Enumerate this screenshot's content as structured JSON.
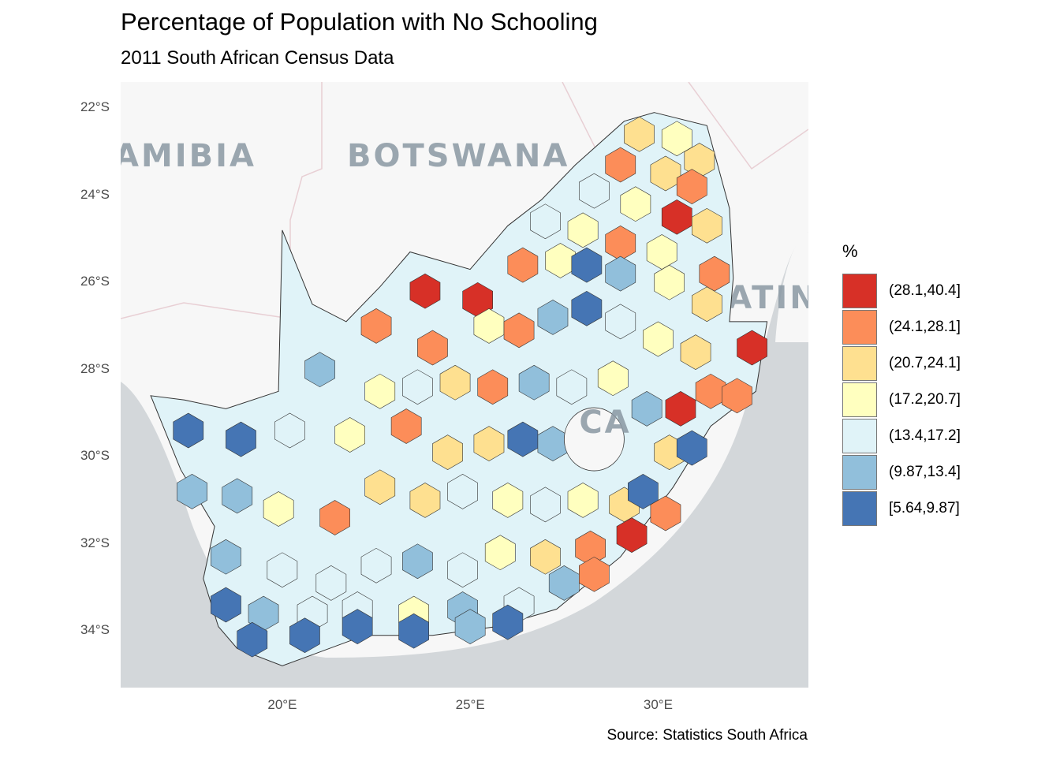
{
  "title": "Percentage of Population with No Schooling",
  "subtitle": "2011 South African Census Data",
  "caption": "Source: Statistics South Africa",
  "basemap_labels": [
    "AMIBIA",
    "BOTSWANA",
    "VATINI",
    "CA"
  ],
  "chart_data": {
    "type": "choropleth",
    "title": "Percentage of Population with No Schooling",
    "subtitle": "2011 South African Census Data",
    "caption": "Source: Statistics South Africa",
    "xlabel": "",
    "ylabel": "",
    "x_ticks": [
      "20°E",
      "25°E",
      "30°E"
    ],
    "x_tick_values": [
      20,
      25,
      30
    ],
    "y_ticks": [
      "22°S",
      "24°S",
      "26°S",
      "28°S",
      "30°S",
      "32°S",
      "34°S"
    ],
    "y_tick_values": [
      -22,
      -24,
      -26,
      -28,
      -30,
      -32,
      -34
    ],
    "xlim": [
      15.7,
      34.0
    ],
    "ylim": [
      -35.3,
      -21.4
    ],
    "legend": {
      "title": "%",
      "position": "right",
      "bins": [
        {
          "label": "(28.1,40.4]",
          "color": "#d73027"
        },
        {
          "label": "(24.1,28.1]",
          "color": "#fc8d59"
        },
        {
          "label": "(20.7,24.1]",
          "color": "#fee090"
        },
        {
          "label": "(17.2,20.7]",
          "color": "#ffffbf"
        },
        {
          "label": "(13.4,17.2]",
          "color": "#e0f3f8"
        },
        {
          "label": "(9.87,13.4]",
          "color": "#91bfdb"
        },
        {
          "label": "[5.64,9.87]",
          "color": "#4575b4"
        }
      ]
    },
    "colors": {
      "ocean": "#d3d7da",
      "land_basemap": "#f7f7f7",
      "border": "#333333"
    }
  }
}
